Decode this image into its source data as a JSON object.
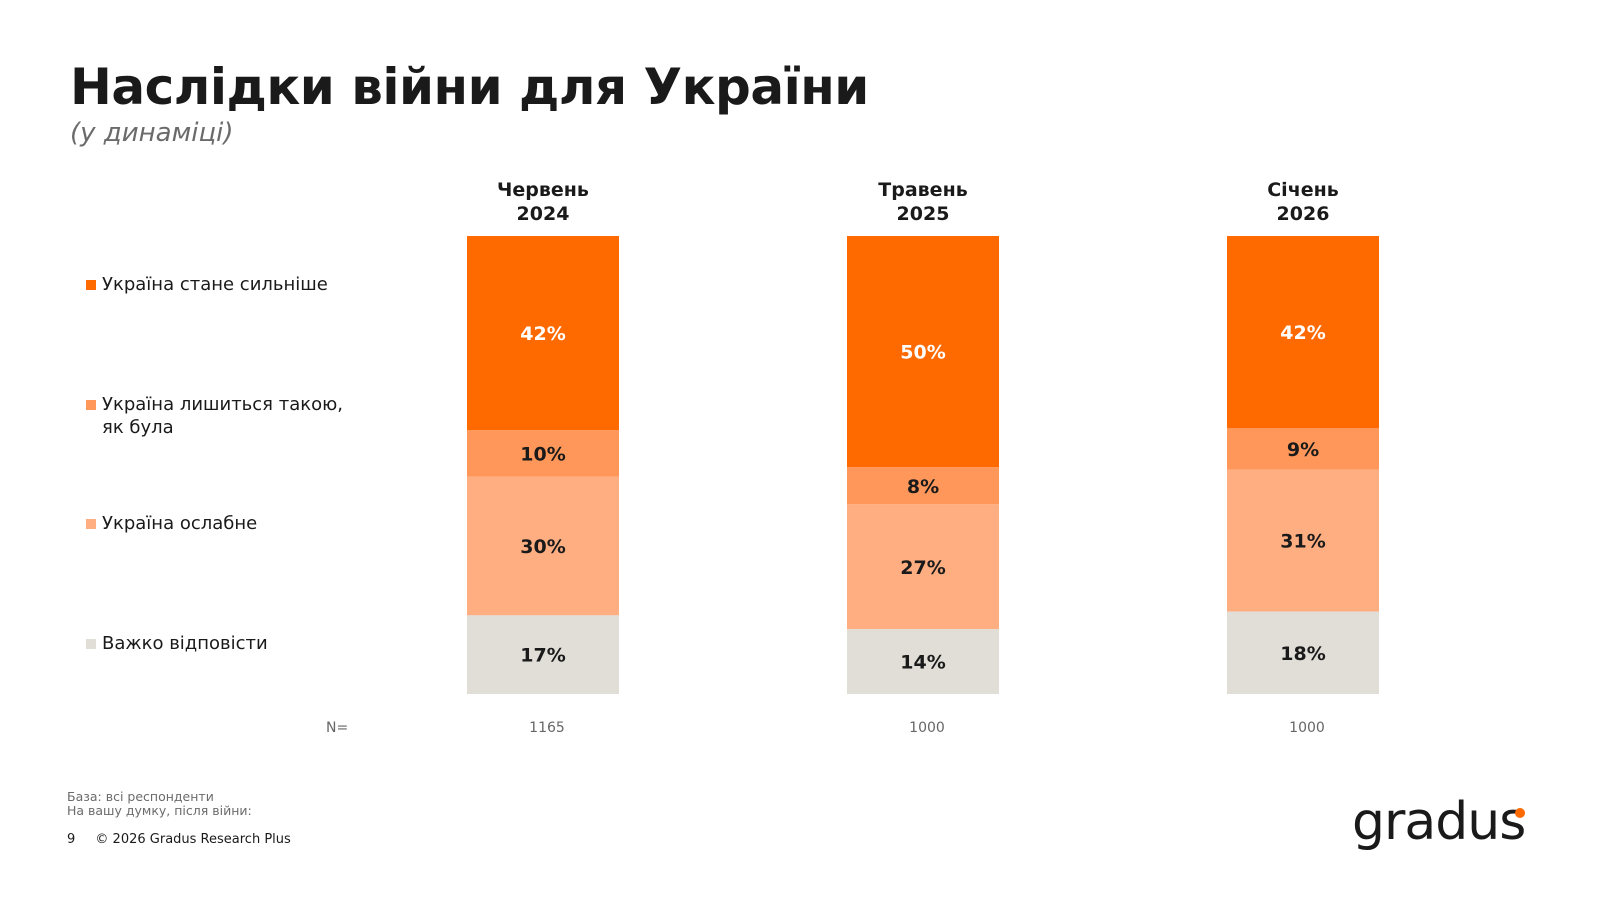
{
  "title": "Наслідки війни для України",
  "subtitle": "(у динаміці)",
  "chart_data": {
    "type": "bar",
    "stacked": true,
    "orientation": "vertical",
    "categories": [
      "Червень 2024",
      "Травень 2025",
      "Січень 2026"
    ],
    "category_lines": [
      [
        "Червень",
        "2024"
      ],
      [
        "Травень",
        "2025"
      ],
      [
        "Січень",
        "2026"
      ]
    ],
    "series": [
      {
        "name": "Україна стане сильніше",
        "name_lines": [
          "Україна стане сильніше"
        ],
        "values": [
          42,
          50,
          42
        ],
        "color": "#ff6a00",
        "label_color": "#ffffff"
      },
      {
        "name": "Україна лишиться такою, як була",
        "name_lines": [
          "Україна лишиться такою,",
          "як була"
        ],
        "values": [
          10,
          8,
          9
        ],
        "color": "#ff975a",
        "label_color": "#1a1a1a"
      },
      {
        "name": "Україна ослабне",
        "name_lines": [
          "Україна ослабне"
        ],
        "values": [
          30,
          27,
          31
        ],
        "color": "#ffae82",
        "label_color": "#1a1a1a"
      },
      {
        "name": "Важко відповісти",
        "name_lines": [
          "Важко відповісти"
        ],
        "values": [
          17,
          14,
          18
        ],
        "color": "#e1ded7",
        "label_color": "#1a1a1a"
      }
    ],
    "unit": "%",
    "legend": "left",
    "n_label": "N=",
    "n_values": [
      "1165",
      "1000",
      "1000"
    ]
  },
  "footnotes": [
    "База: всі респонденти",
    "На вашу думку, після війни:"
  ],
  "footer": {
    "page": "9",
    "copyright": "© 2026 Gradus Research Plus"
  },
  "logo": "gradus"
}
